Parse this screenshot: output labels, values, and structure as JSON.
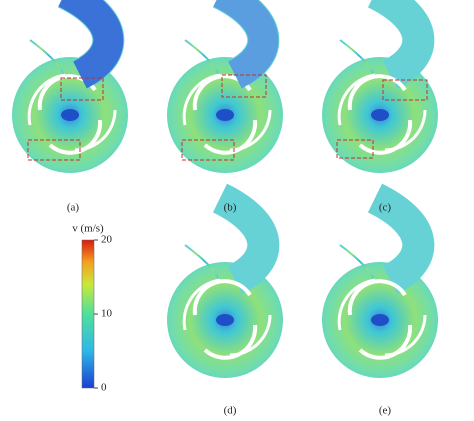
{
  "panels": [
    {
      "label": "(a)"
    },
    {
      "label": "(b)"
    },
    {
      "label": "(c)"
    },
    {
      "label": "(d)"
    },
    {
      "label": "(e)"
    }
  ],
  "colorbar": {
    "label": "v (m/s)",
    "range": [
      0,
      20
    ],
    "ticks": [
      0,
      10,
      20
    ]
  }
}
